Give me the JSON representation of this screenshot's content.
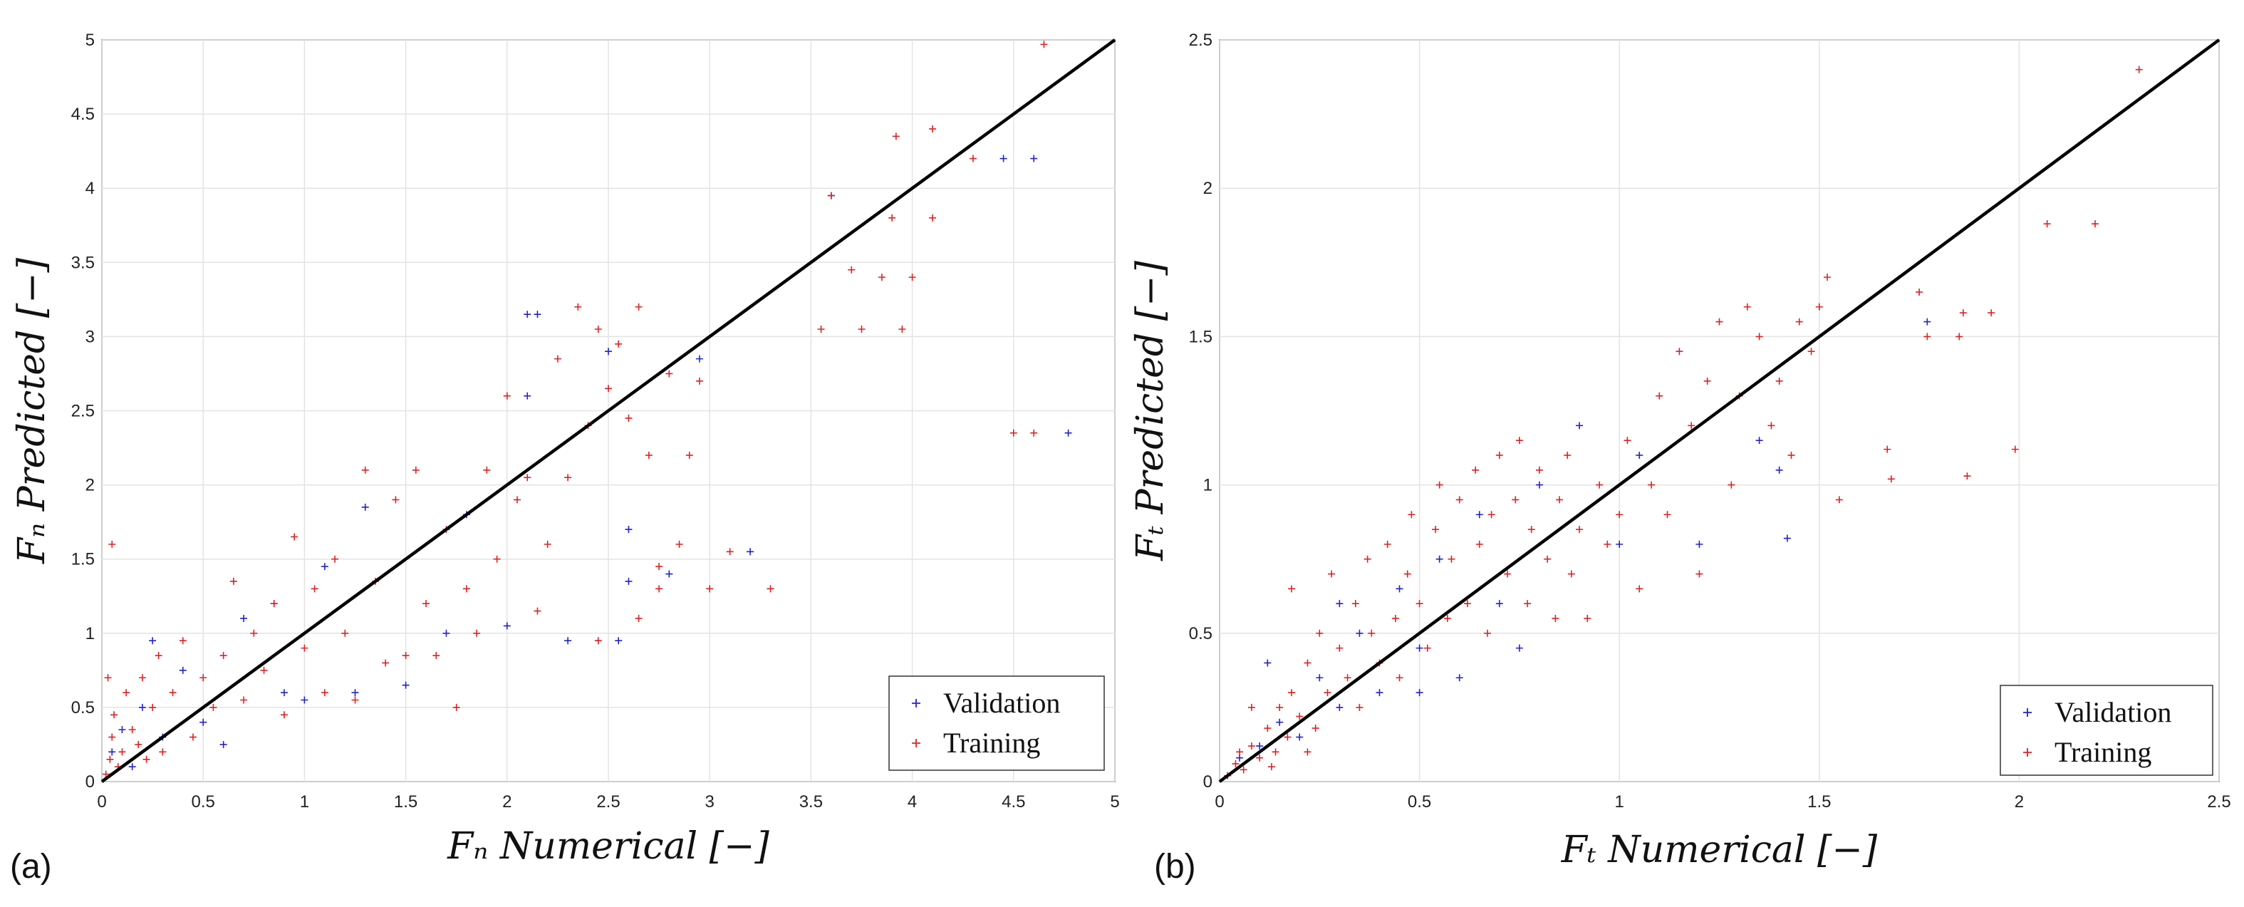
{
  "panels": [
    {
      "label": "(a)"
    },
    {
      "label": "(b)"
    }
  ],
  "colors": {
    "validation": "#2222cc",
    "training": "#dd2222",
    "identity_line": "#000000",
    "grid": "#e3e3e3"
  },
  "chart_data": [
    {
      "type": "scatter",
      "panel": "(a)",
      "xlabel": "F_n Numerical [−]",
      "ylabel": "F_n Predicted [−]",
      "xlim": [
        0,
        5
      ],
      "ylim": [
        0,
        5
      ],
      "xticks": [
        0,
        0.5,
        1,
        1.5,
        2,
        2.5,
        3,
        3.5,
        4,
        4.5,
        5
      ],
      "yticks": [
        0,
        0.5,
        1,
        1.5,
        2,
        2.5,
        3,
        3.5,
        4,
        4.5,
        5
      ],
      "xtick_labels": [
        "0",
        "0.5",
        "1",
        "1.5",
        "2",
        "2.5",
        "3",
        "3.5",
        "4",
        "4.5",
        "5"
      ],
      "ytick_labels": [
        "0",
        "0.5",
        "1",
        "1.5",
        "2",
        "2.5",
        "3",
        "3.5",
        "4",
        "4.5",
        "5"
      ],
      "grid": true,
      "legend": {
        "position": "bottom-right",
        "entries": [
          "Validation",
          "Training"
        ]
      },
      "reference_line": {
        "x": [
          0,
          5
        ],
        "y": [
          0,
          5
        ]
      },
      "series": [
        {
          "name": "Validation",
          "points": [
            [
              0.05,
              0.2
            ],
            [
              0.1,
              0.35
            ],
            [
              0.15,
              0.1
            ],
            [
              0.2,
              0.5
            ],
            [
              0.3,
              0.3
            ],
            [
              0.4,
              0.75
            ],
            [
              0.5,
              0.4
            ],
            [
              0.7,
              1.1
            ],
            [
              0.9,
              0.6
            ],
            [
              1.1,
              1.45
            ],
            [
              1.3,
              1.85
            ],
            [
              1.5,
              0.65
            ],
            [
              1.7,
              1.0
            ],
            [
              2.0,
              1.05
            ],
            [
              2.1,
              3.15
            ],
            [
              2.15,
              3.15
            ],
            [
              2.1,
              2.6
            ],
            [
              2.3,
              0.95
            ],
            [
              2.5,
              2.9
            ],
            [
              2.55,
              0.95
            ],
            [
              2.6,
              1.7
            ],
            [
              2.6,
              1.35
            ],
            [
              2.8,
              1.4
            ],
            [
              2.95,
              2.85
            ],
            [
              3.2,
              1.55
            ],
            [
              3.6,
              3.95
            ],
            [
              4.45,
              4.2
            ],
            [
              4.6,
              4.2
            ],
            [
              4.77,
              2.35
            ],
            [
              0.25,
              0.95
            ],
            [
              0.6,
              0.25
            ],
            [
              1.0,
              0.55
            ],
            [
              1.25,
              0.6
            ],
            [
              1.8,
              1.8
            ],
            [
              0.85,
              1.2
            ]
          ]
        },
        {
          "name": "Training",
          "points": [
            [
              0.02,
              0.05
            ],
            [
              0.04,
              0.15
            ],
            [
              0.05,
              0.3
            ],
            [
              0.06,
              0.45
            ],
            [
              0.08,
              0.1
            ],
            [
              0.1,
              0.2
            ],
            [
              0.12,
              0.6
            ],
            [
              0.15,
              0.35
            ],
            [
              0.18,
              0.25
            ],
            [
              0.2,
              0.7
            ],
            [
              0.22,
              0.15
            ],
            [
              0.25,
              0.5
            ],
            [
              0.28,
              0.85
            ],
            [
              0.3,
              0.2
            ],
            [
              0.35,
              0.6
            ],
            [
              0.05,
              1.6
            ],
            [
              0.03,
              0.7
            ],
            [
              0.4,
              0.95
            ],
            [
              0.45,
              0.3
            ],
            [
              0.5,
              0.7
            ],
            [
              0.55,
              0.5
            ],
            [
              0.6,
              0.85
            ],
            [
              0.65,
              1.35
            ],
            [
              0.7,
              0.55
            ],
            [
              0.75,
              1.0
            ],
            [
              0.8,
              0.75
            ],
            [
              0.85,
              1.2
            ],
            [
              0.9,
              0.45
            ],
            [
              0.95,
              1.65
            ],
            [
              1.0,
              0.9
            ],
            [
              1.05,
              1.3
            ],
            [
              1.1,
              0.6
            ],
            [
              1.15,
              1.5
            ],
            [
              1.2,
              1.0
            ],
            [
              1.25,
              0.55
            ],
            [
              1.3,
              2.1
            ],
            [
              1.35,
              1.35
            ],
            [
              1.4,
              0.8
            ],
            [
              1.45,
              1.9
            ],
            [
              1.5,
              0.85
            ],
            [
              1.55,
              2.1
            ],
            [
              1.6,
              1.2
            ],
            [
              1.65,
              0.85
            ],
            [
              1.7,
              1.7
            ],
            [
              1.75,
              0.5
            ],
            [
              1.8,
              1.3
            ],
            [
              1.85,
              1.0
            ],
            [
              1.9,
              2.1
            ],
            [
              1.95,
              1.5
            ],
            [
              2.0,
              2.6
            ],
            [
              2.05,
              1.9
            ],
            [
              2.1,
              2.05
            ],
            [
              2.15,
              1.15
            ],
            [
              2.2,
              1.6
            ],
            [
              2.25,
              2.85
            ],
            [
              2.3,
              2.05
            ],
            [
              2.35,
              3.2
            ],
            [
              2.4,
              2.4
            ],
            [
              2.45,
              3.05
            ],
            [
              2.5,
              2.65
            ],
            [
              2.55,
              2.95
            ],
            [
              2.6,
              2.45
            ],
            [
              2.65,
              3.2
            ],
            [
              2.7,
              2.2
            ],
            [
              2.75,
              1.3
            ],
            [
              2.8,
              2.75
            ],
            [
              2.85,
              1.6
            ],
            [
              2.9,
              2.2
            ],
            [
              2.95,
              2.7
            ],
            [
              3.0,
              1.3
            ],
            [
              3.1,
              1.55
            ],
            [
              3.3,
              1.3
            ],
            [
              3.55,
              3.05
            ],
            [
              3.6,
              3.95
            ],
            [
              3.7,
              3.45
            ],
            [
              3.75,
              3.05
            ],
            [
              3.85,
              3.4
            ],
            [
              3.9,
              3.8
            ],
            [
              3.92,
              4.35
            ],
            [
              3.95,
              3.05
            ],
            [
              4.0,
              3.4
            ],
            [
              4.1,
              4.4
            ],
            [
              4.1,
              3.8
            ],
            [
              4.3,
              4.2
            ],
            [
              4.5,
              2.35
            ],
            [
              4.6,
              2.35
            ],
            [
              4.65,
              4.97
            ],
            [
              2.45,
              0.95
            ],
            [
              2.65,
              1.1
            ],
            [
              2.75,
              1.45
            ]
          ]
        }
      ]
    },
    {
      "type": "scatter",
      "panel": "(b)",
      "xlabel": "F_t Numerical [−]",
      "ylabel": "F_t Predicted [−]",
      "xlim": [
        0,
        2.5
      ],
      "ylim": [
        0,
        2.5
      ],
      "xticks": [
        0,
        0.5,
        1,
        1.5,
        2,
        2.5
      ],
      "yticks": [
        0,
        0.5,
        1,
        1.5,
        2,
        2.5
      ],
      "xtick_labels": [
        "0",
        "0.5",
        "1",
        "1.5",
        "2",
        "2.5"
      ],
      "ytick_labels": [
        "0",
        "0.5",
        "1",
        "1.5",
        "2",
        "2.5"
      ],
      "grid": true,
      "legend": {
        "position": "bottom-right",
        "entries": [
          "Validation",
          "Training"
        ]
      },
      "reference_line": {
        "x": [
          0,
          2.5
        ],
        "y": [
          0,
          2.5
        ]
      },
      "series": [
        {
          "name": "Validation",
          "points": [
            [
              0.05,
              0.08
            ],
            [
              0.1,
              0.12
            ],
            [
              0.15,
              0.2
            ],
            [
              0.2,
              0.15
            ],
            [
              0.25,
              0.35
            ],
            [
              0.3,
              0.25
            ],
            [
              0.35,
              0.5
            ],
            [
              0.4,
              0.3
            ],
            [
              0.45,
              0.65
            ],
            [
              0.5,
              0.45
            ],
            [
              0.55,
              0.75
            ],
            [
              0.6,
              0.35
            ],
            [
              0.65,
              0.9
            ],
            [
              0.7,
              0.6
            ],
            [
              0.8,
              1.0
            ],
            [
              0.9,
              1.2
            ],
            [
              1.0,
              0.8
            ],
            [
              1.05,
              1.1
            ],
            [
              1.2,
              0.8
            ],
            [
              1.35,
              1.15
            ],
            [
              1.4,
              1.05
            ],
            [
              1.42,
              0.82
            ],
            [
              1.77,
              1.55
            ],
            [
              0.12,
              0.4
            ],
            [
              0.3,
              0.6
            ],
            [
              0.5,
              0.3
            ],
            [
              0.75,
              0.45
            ]
          ]
        },
        {
          "name": "Training",
          "points": [
            [
              0.02,
              0.02
            ],
            [
              0.04,
              0.06
            ],
            [
              0.05,
              0.1
            ],
            [
              0.06,
              0.04
            ],
            [
              0.08,
              0.12
            ],
            [
              0.1,
              0.08
            ],
            [
              0.12,
              0.18
            ],
            [
              0.14,
              0.1
            ],
            [
              0.15,
              0.25
            ],
            [
              0.17,
              0.15
            ],
            [
              0.18,
              0.3
            ],
            [
              0.2,
              0.22
            ],
            [
              0.22,
              0.4
            ],
            [
              0.24,
              0.18
            ],
            [
              0.25,
              0.5
            ],
            [
              0.27,
              0.3
            ],
            [
              0.28,
              0.7
            ],
            [
              0.3,
              0.45
            ],
            [
              0.32,
              0.35
            ],
            [
              0.34,
              0.6
            ],
            [
              0.35,
              0.25
            ],
            [
              0.37,
              0.75
            ],
            [
              0.38,
              0.5
            ],
            [
              0.4,
              0.4
            ],
            [
              0.42,
              0.8
            ],
            [
              0.44,
              0.55
            ],
            [
              0.45,
              0.35
            ],
            [
              0.47,
              0.7
            ],
            [
              0.48,
              0.9
            ],
            [
              0.5,
              0.6
            ],
            [
              0.52,
              0.45
            ],
            [
              0.54,
              0.85
            ],
            [
              0.55,
              1.0
            ],
            [
              0.57,
              0.55
            ],
            [
              0.58,
              0.75
            ],
            [
              0.6,
              0.95
            ],
            [
              0.62,
              0.6
            ],
            [
              0.64,
              1.05
            ],
            [
              0.65,
              0.8
            ],
            [
              0.67,
              0.5
            ],
            [
              0.68,
              0.9
            ],
            [
              0.7,
              1.1
            ],
            [
              0.72,
              0.7
            ],
            [
              0.74,
              0.95
            ],
            [
              0.75,
              1.15
            ],
            [
              0.77,
              0.6
            ],
            [
              0.78,
              0.85
            ],
            [
              0.8,
              1.05
            ],
            [
              0.82,
              0.75
            ],
            [
              0.84,
              0.55
            ],
            [
              0.85,
              0.95
            ],
            [
              0.87,
              1.1
            ],
            [
              0.88,
              0.7
            ],
            [
              0.9,
              0.85
            ],
            [
              0.92,
              0.55
            ],
            [
              0.95,
              1.0
            ],
            [
              0.97,
              0.8
            ],
            [
              1.0,
              0.9
            ],
            [
              1.02,
              1.15
            ],
            [
              1.05,
              0.65
            ],
            [
              1.08,
              1.0
            ],
            [
              1.1,
              1.3
            ],
            [
              1.12,
              0.9
            ],
            [
              1.15,
              1.45
            ],
            [
              1.18,
              1.2
            ],
            [
              1.2,
              0.7
            ],
            [
              1.22,
              1.35
            ],
            [
              1.25,
              1.55
            ],
            [
              1.28,
              1.0
            ],
            [
              1.3,
              1.3
            ],
            [
              1.32,
              1.6
            ],
            [
              1.35,
              1.5
            ],
            [
              1.38,
              1.2
            ],
            [
              1.4,
              1.35
            ],
            [
              1.43,
              1.1
            ],
            [
              1.45,
              1.55
            ],
            [
              1.48,
              1.45
            ],
            [
              1.5,
              1.6
            ],
            [
              1.52,
              1.7
            ],
            [
              1.55,
              0.95
            ],
            [
              1.67,
              1.12
            ],
            [
              1.68,
              1.02
            ],
            [
              1.75,
              1.65
            ],
            [
              1.77,
              1.5
            ],
            [
              1.85,
              1.5
            ],
            [
              1.86,
              1.58
            ],
            [
              1.87,
              1.03
            ],
            [
              1.93,
              1.58
            ],
            [
              1.99,
              1.12
            ],
            [
              2.07,
              1.88
            ],
            [
              2.19,
              1.88
            ],
            [
              2.3,
              2.4
            ],
            [
              0.13,
              0.05
            ],
            [
              0.18,
              0.65
            ],
            [
              0.22,
              0.1
            ],
            [
              0.08,
              0.25
            ]
          ]
        }
      ]
    }
  ]
}
